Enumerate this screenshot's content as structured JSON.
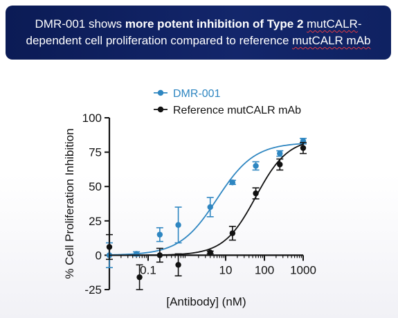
{
  "banner": {
    "line1_pre": "DMR-001 shows ",
    "line1_bold": "more potent inhibition of Type 2 ",
    "line1_squig": "mutCALR",
    "line1_post": "-",
    "line2_pre": "dependent cell proliferation compared to reference ",
    "line2_squig": "mutCALR mAb",
    "background": "#0f2262",
    "spellcheck_underline": "#e5393f"
  },
  "chart_data": {
    "type": "scatter",
    "xlabel": "[Antibody] (nM)",
    "ylabel": "% Cell Proliferation Inhibition",
    "xscale": "log",
    "xlim": [
      0.01,
      1000
    ],
    "ylim": [
      -25,
      100
    ],
    "xticks": [
      0.1,
      10,
      100,
      1000
    ],
    "xtick_labels": [
      "0.1",
      "10",
      "100",
      "1000"
    ],
    "yticks": [
      -25,
      0,
      25,
      50,
      75,
      100
    ],
    "ytick_labels": [
      "-25",
      "0",
      "25",
      "50",
      "75",
      "100"
    ],
    "grid": false,
    "legend_position": "top",
    "series": [
      {
        "name": "DMR-001",
        "color": "#2e86c1",
        "x": [
          0.01,
          0.05,
          0.2,
          0.6,
          4,
          15,
          60,
          250,
          1000
        ],
        "y": [
          0,
          1,
          15,
          22,
          35,
          53,
          65,
          74,
          83
        ],
        "err": [
          9,
          1.5,
          5,
          13,
          7,
          1.5,
          3,
          2,
          2
        ],
        "fit": {
          "bottom": 0,
          "top": 82,
          "ec50": 6,
          "hill": 0.9
        }
      },
      {
        "name": "Reference mutCALR mAb",
        "color": "#111111",
        "x": [
          0.01,
          0.06,
          0.2,
          0.6,
          4,
          15,
          60,
          250,
          1000
        ],
        "y": [
          6,
          -16,
          0,
          -7,
          2,
          16,
          45,
          66,
          78
        ],
        "err": [
          9,
          9,
          5,
          8,
          1,
          5,
          4,
          4,
          4
        ],
        "fit": {
          "bottom": 0,
          "top": 85,
          "ec50": 60,
          "hill": 1.05
        }
      }
    ]
  }
}
